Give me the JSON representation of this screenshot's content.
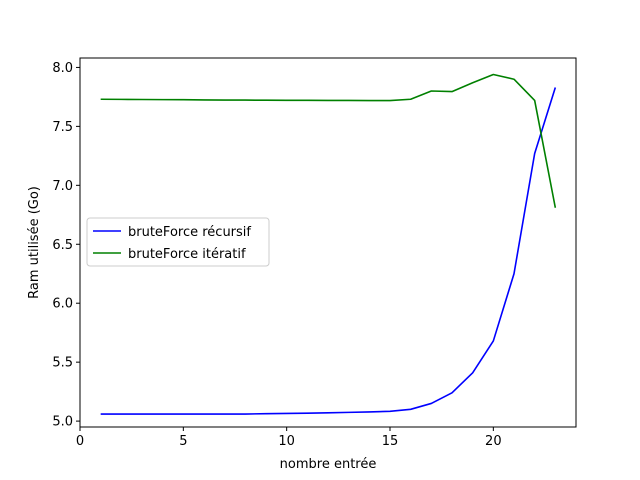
{
  "chart_data": {
    "type": "line",
    "title": "",
    "xlabel": "nombre entrée",
    "ylabel": "Ram utilisée (Go)",
    "xlim": [
      0,
      24
    ],
    "ylim": [
      4.95,
      8.08
    ],
    "x_ticks": [
      0,
      5,
      10,
      15,
      20
    ],
    "y_ticks": [
      5.0,
      5.5,
      6.0,
      6.5,
      7.0,
      7.5,
      8.0
    ],
    "x_tick_labels": [
      "0",
      "5",
      "10",
      "15",
      "20"
    ],
    "y_tick_labels": [
      "5.0",
      "5.5",
      "6.0",
      "6.5",
      "7.0",
      "7.5",
      "8.0"
    ],
    "grid": false,
    "legend_position": "center-left",
    "x": [
      1,
      2,
      3,
      4,
      5,
      6,
      7,
      8,
      9,
      10,
      11,
      12,
      13,
      14,
      15,
      16,
      17,
      18,
      19,
      20,
      21,
      22,
      23
    ],
    "series": [
      {
        "name": "bruteForce récursif",
        "color": "#0000ff",
        "values": [
          5.06,
          5.06,
          5.06,
          5.06,
          5.06,
          5.06,
          5.06,
          5.06,
          5.063,
          5.065,
          5.067,
          5.07,
          5.074,
          5.078,
          5.083,
          5.1,
          5.15,
          5.24,
          5.41,
          5.68,
          6.25,
          7.27,
          7.83
        ]
      },
      {
        "name": "bruteForce itératif",
        "color": "#008000",
        "values": [
          7.73,
          7.729,
          7.728,
          7.727,
          7.726,
          7.724,
          7.723,
          7.723,
          7.722,
          7.721,
          7.721,
          7.72,
          7.72,
          7.719,
          7.719,
          7.73,
          7.8,
          7.795,
          7.87,
          7.94,
          7.9,
          7.72,
          6.81
        ]
      }
    ]
  }
}
